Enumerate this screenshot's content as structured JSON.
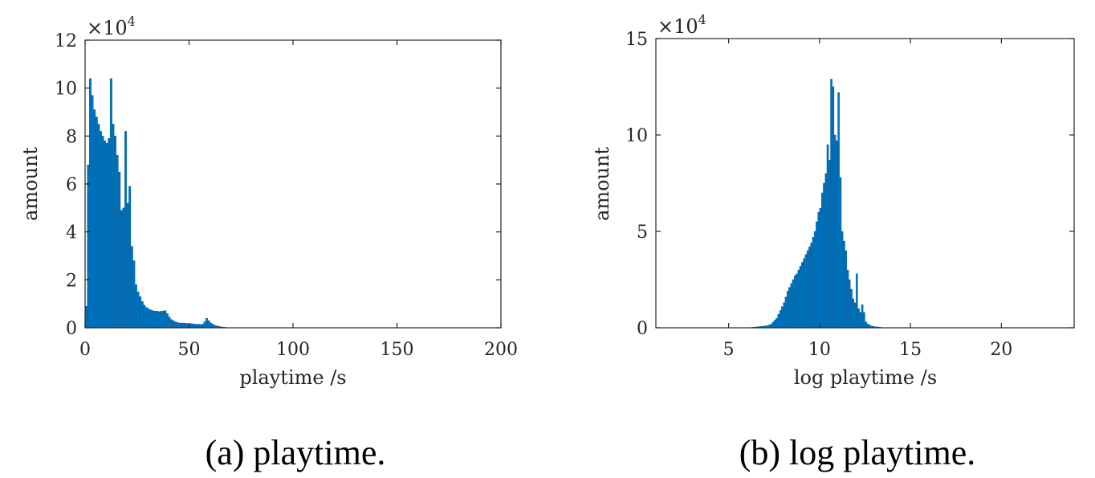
{
  "colors": {
    "bar": "#0072BD",
    "bar_edge": "#004f86",
    "axis": "#262626"
  },
  "chart_data": [
    {
      "type": "bar",
      "caption": "(a) playtime.",
      "xlabel": "playtime /s",
      "ylabel": "amount",
      "multiplier": "×10",
      "multiplier_exp": "4",
      "xlim": [
        0,
        200
      ],
      "ylim": [
        0,
        120000
      ],
      "xticks": [
        0,
        50,
        100,
        150,
        200
      ],
      "yticks": [
        0,
        20000,
        40000,
        60000,
        80000,
        100000,
        120000
      ],
      "ytick_labels": [
        "0",
        "2",
        "4",
        "6",
        "8",
        "10",
        "12"
      ],
      "bin_width": 1,
      "x": [
        0,
        1,
        2,
        3,
        4,
        5,
        6,
        7,
        8,
        9,
        10,
        11,
        12,
        13,
        14,
        15,
        16,
        17,
        18,
        19,
        20,
        21,
        22,
        23,
        24,
        25,
        26,
        27,
        28,
        29,
        30,
        31,
        32,
        33,
        34,
        35,
        36,
        37,
        38,
        39,
        40,
        41,
        42,
        43,
        44,
        45,
        46,
        47,
        48,
        49,
        50,
        51,
        52,
        53,
        54,
        55,
        56,
        57,
        58,
        59,
        60,
        61,
        62,
        63,
        64,
        65,
        66,
        67,
        68,
        69,
        70
      ],
      "values": [
        9000,
        68000,
        104000,
        97000,
        91000,
        88000,
        85000,
        82000,
        80000,
        78000,
        77000,
        79000,
        104000,
        85000,
        80000,
        72000,
        65000,
        49000,
        50000,
        82000,
        52000,
        59000,
        34000,
        28000,
        18000,
        15000,
        13000,
        11000,
        9500,
        8500,
        8000,
        7500,
        7200,
        7000,
        7000,
        6800,
        6900,
        7000,
        7200,
        6000,
        4500,
        3500,
        3000,
        2500,
        2200,
        2000,
        2000,
        2000,
        1900,
        1800,
        1800,
        1700,
        1600,
        1500,
        1500,
        1400,
        1500,
        2500,
        4000,
        3000,
        2000,
        1500,
        1000,
        800,
        600,
        400,
        300,
        200,
        100,
        50,
        20
      ]
    },
    {
      "type": "bar",
      "caption": "(b) log playtime.",
      "xlabel": "log playtime /s",
      "ylabel": "amount",
      "multiplier": "×10",
      "multiplier_exp": "4",
      "xlim": [
        1,
        24
      ],
      "ylim": [
        0,
        150000
      ],
      "xticks": [
        5,
        10,
        15,
        20
      ],
      "yticks": [
        0,
        50000,
        100000,
        150000
      ],
      "ytick_labels": [
        "0",
        "5",
        "10",
        "15"
      ],
      "bin_width": 0.1,
      "x": [
        6.0,
        6.1,
        6.2,
        6.3,
        6.4,
        6.5,
        6.6,
        6.7,
        6.8,
        6.9,
        7.0,
        7.1,
        7.2,
        7.3,
        7.4,
        7.5,
        7.6,
        7.7,
        7.8,
        7.9,
        8.0,
        8.1,
        8.2,
        8.3,
        8.4,
        8.5,
        8.6,
        8.7,
        8.8,
        8.9,
        9.0,
        9.1,
        9.2,
        9.3,
        9.4,
        9.5,
        9.6,
        9.7,
        9.8,
        9.9,
        10.0,
        10.1,
        10.2,
        10.3,
        10.4,
        10.5,
        10.6,
        10.7,
        10.8,
        10.9,
        11.0,
        11.1,
        11.2,
        11.3,
        11.4,
        11.5,
        11.6,
        11.7,
        11.8,
        11.9,
        12.0,
        12.1,
        12.2,
        12.3,
        12.4,
        12.5,
        12.6,
        12.7,
        12.8,
        12.9,
        13.0,
        13.1,
        13.2,
        13.3
      ],
      "values": [
        100,
        150,
        200,
        300,
        400,
        500,
        600,
        700,
        800,
        900,
        1000,
        1200,
        1500,
        2000,
        3000,
        4000,
        5000,
        7000,
        9000,
        11000,
        13000,
        16000,
        19000,
        21000,
        23000,
        25000,
        27000,
        28000,
        30000,
        32000,
        34000,
        36000,
        38000,
        40000,
        42000,
        44000,
        47000,
        50000,
        55000,
        60000,
        62000,
        70000,
        75000,
        80000,
        95000,
        87000,
        129000,
        125000,
        100000,
        97000,
        122000,
        78000,
        50000,
        45000,
        40000,
        30000,
        25000,
        20000,
        15000,
        13000,
        28000,
        10000,
        8000,
        12000,
        8000,
        3000,
        2000,
        1500,
        1000,
        800,
        600,
        500,
        400,
        300
      ]
    }
  ]
}
